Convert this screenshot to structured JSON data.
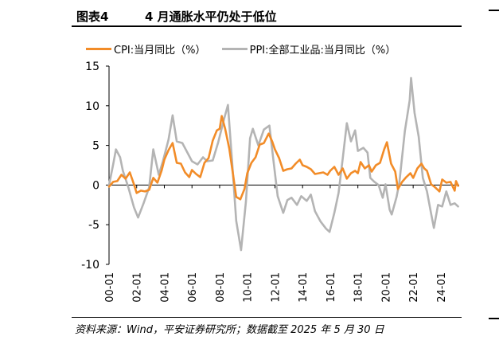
{
  "figure": {
    "number": "图表4",
    "title": "4 月通胀水平仍处于低位",
    "source": "资料来源：Wind，平安证券研究所；数据截至 2025 年 5 月 30 日"
  },
  "colors": {
    "cpi": "#F28C28",
    "ppi": "#B4B4B4",
    "axis": "#000000"
  },
  "chart_data": {
    "type": "line",
    "title": "",
    "xlabel": "",
    "ylabel": "",
    "ylim": [
      -10,
      15
    ],
    "yticks": [
      -10,
      -5,
      0,
      5,
      10,
      15
    ],
    "xlim": [
      2000.0,
      2025.33
    ],
    "xticks": [
      {
        "pos": 2000,
        "label": "00-01"
      },
      {
        "pos": 2002,
        "label": "02-01"
      },
      {
        "pos": 2004,
        "label": "04-01"
      },
      {
        "pos": 2006,
        "label": "06-01"
      },
      {
        "pos": 2008,
        "label": "08-01"
      },
      {
        "pos": 2010,
        "label": "10-01"
      },
      {
        "pos": 2012,
        "label": "12-01"
      },
      {
        "pos": 2014,
        "label": "14-01"
      },
      {
        "pos": 2016,
        "label": "16-01"
      },
      {
        "pos": 2018,
        "label": "18-01"
      },
      {
        "pos": 2020,
        "label": "20-01"
      },
      {
        "pos": 2022,
        "label": "22-01"
      },
      {
        "pos": 2024,
        "label": "24-01"
      }
    ],
    "legend_position": "top",
    "grid": false,
    "series": [
      {
        "name": "CPI:当月同比（%）",
        "color": "#F28C28",
        "points": [
          [
            2000.0,
            -0.2
          ],
          [
            2000.3,
            0.4
          ],
          [
            2000.6,
            0.5
          ],
          [
            2000.9,
            1.3
          ],
          [
            2001.2,
            0.8
          ],
          [
            2001.5,
            1.6
          ],
          [
            2001.8,
            0.1
          ],
          [
            2002.0,
            -1.0
          ],
          [
            2002.3,
            -0.7
          ],
          [
            2002.6,
            -0.8
          ],
          [
            2002.9,
            -0.6
          ],
          [
            2003.2,
            0.9
          ],
          [
            2003.5,
            0.3
          ],
          [
            2003.8,
            1.8
          ],
          [
            2004.0,
            3.2
          ],
          [
            2004.3,
            4.4
          ],
          [
            2004.6,
            5.3
          ],
          [
            2004.9,
            2.8
          ],
          [
            2005.2,
            2.7
          ],
          [
            2005.5,
            1.6
          ],
          [
            2005.8,
            1.0
          ],
          [
            2006.0,
            1.9
          ],
          [
            2006.3,
            1.4
          ],
          [
            2006.6,
            1.0
          ],
          [
            2006.9,
            2.8
          ],
          [
            2007.2,
            3.4
          ],
          [
            2007.5,
            5.6
          ],
          [
            2007.8,
            6.9
          ],
          [
            2008.0,
            7.1
          ],
          [
            2008.15,
            8.7
          ],
          [
            2008.4,
            7.1
          ],
          [
            2008.7,
            4.6
          ],
          [
            2009.0,
            1.0
          ],
          [
            2009.2,
            -1.5
          ],
          [
            2009.5,
            -1.8
          ],
          [
            2009.8,
            -0.5
          ],
          [
            2010.0,
            1.5
          ],
          [
            2010.3,
            2.8
          ],
          [
            2010.6,
            3.5
          ],
          [
            2010.9,
            5.1
          ],
          [
            2011.2,
            5.3
          ],
          [
            2011.55,
            6.5
          ],
          [
            2011.8,
            5.5
          ],
          [
            2012.0,
            4.5
          ],
          [
            2012.3,
            3.4
          ],
          [
            2012.6,
            1.8
          ],
          [
            2012.9,
            2.0
          ],
          [
            2013.2,
            2.1
          ],
          [
            2013.5,
            2.7
          ],
          [
            2013.8,
            3.2
          ],
          [
            2014.0,
            2.5
          ],
          [
            2014.3,
            2.3
          ],
          [
            2014.6,
            2.0
          ],
          [
            2014.9,
            1.4
          ],
          [
            2015.2,
            1.5
          ],
          [
            2015.5,
            1.6
          ],
          [
            2015.8,
            1.3
          ],
          [
            2016.0,
            1.8
          ],
          [
            2016.3,
            2.3
          ],
          [
            2016.6,
            1.3
          ],
          [
            2016.9,
            2.1
          ],
          [
            2017.2,
            0.8
          ],
          [
            2017.5,
            1.5
          ],
          [
            2017.8,
            1.8
          ],
          [
            2018.0,
            1.5
          ],
          [
            2018.2,
            2.9
          ],
          [
            2018.5,
            2.1
          ],
          [
            2018.8,
            2.5
          ],
          [
            2019.0,
            1.7
          ],
          [
            2019.3,
            2.5
          ],
          [
            2019.6,
            2.8
          ],
          [
            2019.9,
            4.5
          ],
          [
            2020.1,
            5.4
          ],
          [
            2020.4,
            2.7
          ],
          [
            2020.7,
            1.7
          ],
          [
            2020.9,
            -0.5
          ],
          [
            2021.2,
            0.4
          ],
          [
            2021.5,
            1.0
          ],
          [
            2021.8,
            1.5
          ],
          [
            2022.0,
            0.9
          ],
          [
            2022.3,
            2.1
          ],
          [
            2022.6,
            2.7
          ],
          [
            2022.8,
            2.1
          ],
          [
            2023.0,
            1.8
          ],
          [
            2023.3,
            0.1
          ],
          [
            2023.6,
            -0.3
          ],
          [
            2023.9,
            -0.8
          ],
          [
            2024.1,
            0.7
          ],
          [
            2024.4,
            0.3
          ],
          [
            2024.7,
            0.4
          ],
          [
            2025.0,
            -0.7
          ],
          [
            2025.1,
            0.5
          ],
          [
            2025.25,
            -0.1
          ]
        ]
      },
      {
        "name": "PPI:全部工业品:当月同比（%）",
        "color": "#B4B4B4",
        "points": [
          [
            2000.0,
            0.0
          ],
          [
            2000.3,
            2.6
          ],
          [
            2000.5,
            4.5
          ],
          [
            2000.8,
            3.5
          ],
          [
            2001.0,
            1.8
          ],
          [
            2001.4,
            -0.3
          ],
          [
            2001.8,
            -2.8
          ],
          [
            2002.1,
            -4.1
          ],
          [
            2002.5,
            -2.3
          ],
          [
            2002.9,
            -0.3
          ],
          [
            2003.2,
            4.5
          ],
          [
            2003.6,
            1.3
          ],
          [
            2003.9,
            3.0
          ],
          [
            2004.3,
            5.7
          ],
          [
            2004.6,
            8.8
          ],
          [
            2004.9,
            5.5
          ],
          [
            2005.3,
            5.3
          ],
          [
            2005.7,
            4.0
          ],
          [
            2006.0,
            3.0
          ],
          [
            2006.4,
            2.6
          ],
          [
            2006.8,
            3.5
          ],
          [
            2007.1,
            3.0
          ],
          [
            2007.5,
            3.1
          ],
          [
            2007.9,
            5.4
          ],
          [
            2008.3,
            8.2
          ],
          [
            2008.6,
            10.1
          ],
          [
            2008.9,
            3.0
          ],
          [
            2009.2,
            -4.5
          ],
          [
            2009.55,
            -8.2
          ],
          [
            2009.9,
            -2.1
          ],
          [
            2010.2,
            5.9
          ],
          [
            2010.4,
            7.1
          ],
          [
            2010.8,
            5.0
          ],
          [
            2011.2,
            7.0
          ],
          [
            2011.6,
            7.5
          ],
          [
            2011.9,
            3.0
          ],
          [
            2012.2,
            -1.4
          ],
          [
            2012.6,
            -3.5
          ],
          [
            2012.9,
            -1.9
          ],
          [
            2013.2,
            -1.6
          ],
          [
            2013.6,
            -2.5
          ],
          [
            2013.9,
            -1.4
          ],
          [
            2014.3,
            -2.0
          ],
          [
            2014.6,
            -1.2
          ],
          [
            2014.9,
            -3.3
          ],
          [
            2015.3,
            -4.6
          ],
          [
            2015.7,
            -5.5
          ],
          [
            2015.95,
            -5.9
          ],
          [
            2016.3,
            -3.5
          ],
          [
            2016.6,
            -1.0
          ],
          [
            2016.9,
            3.3
          ],
          [
            2017.2,
            7.8
          ],
          [
            2017.5,
            5.5
          ],
          [
            2017.8,
            6.9
          ],
          [
            2018.0,
            4.3
          ],
          [
            2018.4,
            4.7
          ],
          [
            2018.7,
            4.1
          ],
          [
            2018.9,
            0.9
          ],
          [
            2019.2,
            0.4
          ],
          [
            2019.5,
            0.0
          ],
          [
            2019.8,
            -1.6
          ],
          [
            2020.0,
            0.1
          ],
          [
            2020.3,
            -3.1
          ],
          [
            2020.45,
            -3.7
          ],
          [
            2020.8,
            -1.5
          ],
          [
            2021.0,
            0.3
          ],
          [
            2021.4,
            6.8
          ],
          [
            2021.75,
            10.7
          ],
          [
            2021.85,
            13.5
          ],
          [
            2022.1,
            9.1
          ],
          [
            2022.4,
            6.1
          ],
          [
            2022.7,
            0.9
          ],
          [
            2023.0,
            -0.8
          ],
          [
            2023.3,
            -3.6
          ],
          [
            2023.5,
            -5.4
          ],
          [
            2023.8,
            -2.5
          ],
          [
            2024.1,
            -2.7
          ],
          [
            2024.4,
            -0.8
          ],
          [
            2024.7,
            -2.5
          ],
          [
            2025.0,
            -2.3
          ],
          [
            2025.25,
            -2.7
          ]
        ]
      }
    ]
  }
}
